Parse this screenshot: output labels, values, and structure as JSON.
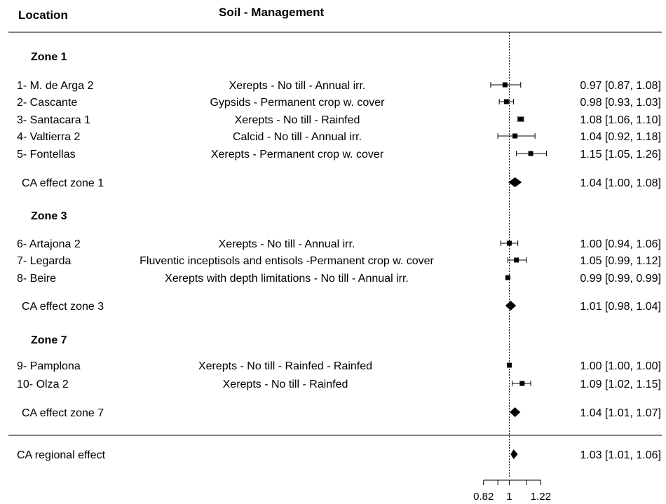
{
  "headers": {
    "location": "Location",
    "soil_management": "Soil - Management"
  },
  "chart_data": {
    "type": "forest",
    "x_axis": {
      "ticks": [
        0.82,
        0.92,
        1.0,
        1.12,
        1.22
      ],
      "tick_labels": [
        "0.82",
        "1",
        "1.22"
      ],
      "reference_line": 1.0,
      "reference_style": "dotted"
    },
    "groups": [
      {
        "zone": "Zone 1",
        "rows": [
          {
            "location": "1- M. de Arga 2",
            "soil": "Xerepts - No till - Annual irr.",
            "est": 0.97,
            "lo": 0.87,
            "hi": 1.08,
            "label": "0.97 [0.87, 1.08]"
          },
          {
            "location": "2- Cascante",
            "soil": "Gypsids - Permanent crop w. cover",
            "est": 0.98,
            "lo": 0.93,
            "hi": 1.03,
            "label": "0.98 [0.93, 1.03]"
          },
          {
            "location": "3- Santacara 1",
            "soil": "Xerepts - No till - Rainfed",
            "est": 1.08,
            "lo": 1.06,
            "hi": 1.1,
            "label": "1.08 [1.06, 1.10]"
          },
          {
            "location": "4- Valtierra 2",
            "soil": "Calcid - No till - Annual irr.",
            "est": 1.04,
            "lo": 0.92,
            "hi": 1.18,
            "label": "1.04 [0.92, 1.18]"
          },
          {
            "location": "5- Fontellas",
            "soil": "Xerepts - Permanent crop w. cover",
            "est": 1.15,
            "lo": 1.05,
            "hi": 1.26,
            "label": "1.15 [1.05, 1.26]"
          }
        ],
        "summary": {
          "name": "CA effect zone 1",
          "est": 1.04,
          "lo": 1.0,
          "hi": 1.08,
          "label": "1.04 [1.00, 1.08]"
        }
      },
      {
        "zone": "Zone 3",
        "rows": [
          {
            "location": "6- Artajona 2",
            "soil": "Xerepts - No till - Annual irr.",
            "est": 1.0,
            "lo": 0.94,
            "hi": 1.06,
            "label": "1.00 [0.94, 1.06]"
          },
          {
            "location": "7- Legarda",
            "soil": "Fluventic inceptisols and entisols -Permanent crop w. cover",
            "est": 1.05,
            "lo": 0.99,
            "hi": 1.12,
            "label": "1.05 [0.99, 1.12]"
          },
          {
            "location": "8- Beire",
            "soil": "Xerepts with depth limitations - No till - Annual irr.",
            "est": 0.99,
            "lo": 0.99,
            "hi": 0.99,
            "label": "0.99 [0.99, 0.99]"
          }
        ],
        "summary": {
          "name": "CA effect zone 3",
          "est": 1.01,
          "lo": 0.98,
          "hi": 1.04,
          "label": "1.01 [0.98, 1.04]"
        }
      },
      {
        "zone": "Zone 7",
        "rows": [
          {
            "location": "9- Pamplona",
            "soil": "Xerepts - No till - Rainfed - Rainfed",
            "est": 1.0,
            "lo": 1.0,
            "hi": 1.0,
            "label": "1.00 [1.00, 1.00]"
          },
          {
            "location": "10- Olza 2",
            "soil": "Xerepts - No till - Rainfed",
            "est": 1.09,
            "lo": 1.02,
            "hi": 1.15,
            "label": "1.09 [1.02, 1.15]"
          }
        ],
        "summary": {
          "name": "CA effect zone 7",
          "est": 1.04,
          "lo": 1.01,
          "hi": 1.07,
          "label": "1.04 [1.01, 1.07]"
        }
      }
    ],
    "overall": {
      "name": "CA regional effect",
      "est": 1.03,
      "lo": 1.01,
      "hi": 1.06,
      "label": "1.03 [1.01, 1.06]"
    }
  }
}
